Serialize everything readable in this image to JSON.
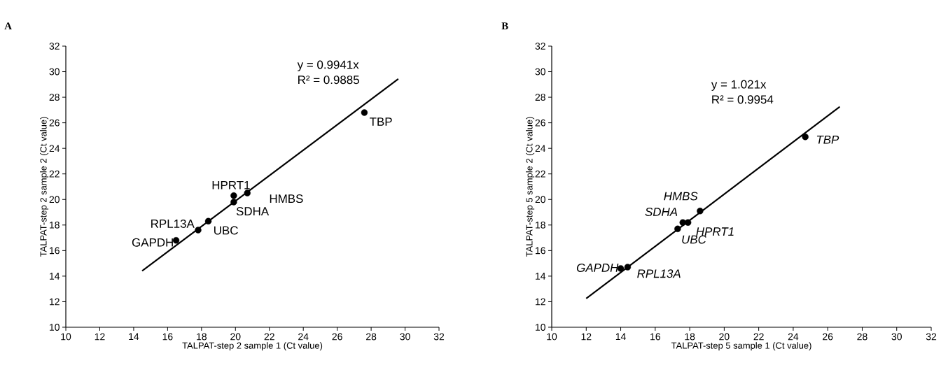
{
  "chart_data": [
    {
      "type": "scatter",
      "title": "A",
      "xlabel": "TALPAT-step 2 sample 1 (Ct value)",
      "ylabel": "TALPAT-step 2 sample 2 (Ct value)",
      "xlim": [
        10,
        32
      ],
      "ylim": [
        10,
        32
      ],
      "xticks": [
        10,
        12,
        14,
        16,
        18,
        20,
        22,
        24,
        26,
        28,
        30,
        32
      ],
      "yticks": [
        10,
        12,
        14,
        16,
        18,
        20,
        22,
        24,
        26,
        28,
        30,
        32
      ],
      "marker": "circle",
      "series": [
        {
          "type": "scatter",
          "color": "#000000",
          "x": [
            16.5,
            17.8,
            18.4,
            19.9,
            19.9,
            20.7,
            27.6
          ],
          "values": [
            16.8,
            17.6,
            18.3,
            20.3,
            19.8,
            20.5,
            26.8
          ]
        },
        {
          "type": "line",
          "marker": "none",
          "color": "#000000",
          "x": [
            14.5,
            29.6
          ],
          "values": [
            14.41,
            29.43
          ]
        }
      ],
      "annotations": [
        "y = 0.9941x",
        "R² = 0.9885",
        {
          "text": "GAPDH",
          "x": 16.5,
          "y": 16.8
        },
        {
          "text": "RPL13A",
          "x": 17.8,
          "y": 17.6
        },
        {
          "text": "UBC",
          "x": 18.4,
          "y": 18.3
        },
        {
          "text": "HPRT1",
          "x": 19.9,
          "y": 20.3
        },
        {
          "text": "SDHA",
          "x": 19.9,
          "y": 19.8
        },
        {
          "text": "HMBS",
          "x": 20.7,
          "y": 20.5
        },
        {
          "text": "TBP",
          "x": 27.6,
          "y": 26.8
        }
      ]
    },
    {
      "type": "scatter",
      "title": "B",
      "xlabel": "TALPAT-step 5 sample 1 (Ct value)",
      "ylabel": "TALPAT-step 5 sample 2 (Ct value)",
      "xlim": [
        10,
        32
      ],
      "ylim": [
        10,
        32
      ],
      "xticks": [
        10,
        12,
        14,
        16,
        18,
        20,
        22,
        24,
        26,
        28,
        30,
        32
      ],
      "yticks": [
        10,
        12,
        14,
        16,
        18,
        20,
        22,
        24,
        26,
        28,
        30,
        32
      ],
      "marker": "circle",
      "series": [
        {
          "type": "scatter",
          "color": "#000000",
          "x": [
            14.0,
            14.4,
            17.3,
            17.6,
            17.9,
            18.6,
            24.7
          ],
          "values": [
            14.6,
            14.7,
            17.7,
            18.2,
            18.2,
            19.1,
            24.9
          ]
        },
        {
          "type": "line",
          "marker": "none",
          "color": "#000000",
          "x": [
            12.0,
            26.7
          ],
          "values": [
            12.25,
            27.26
          ]
        }
      ],
      "annotations": [
        "y = 1.021x",
        "R² = 0.9954",
        {
          "text": "GAPDH",
          "x": 14.0,
          "y": 14.6
        },
        {
          "text": "RPL13A",
          "x": 14.4,
          "y": 14.7
        },
        {
          "text": "UBC",
          "x": 17.3,
          "y": 17.7
        },
        {
          "text": "SDHA",
          "x": 17.6,
          "y": 18.2
        },
        {
          "text": "HPRT1",
          "x": 17.9,
          "y": 18.2
        },
        {
          "text": "HMBS",
          "x": 18.6,
          "y": 19.1
        },
        {
          "text": "TBP",
          "x": 24.7,
          "y": 24.9
        }
      ]
    }
  ]
}
